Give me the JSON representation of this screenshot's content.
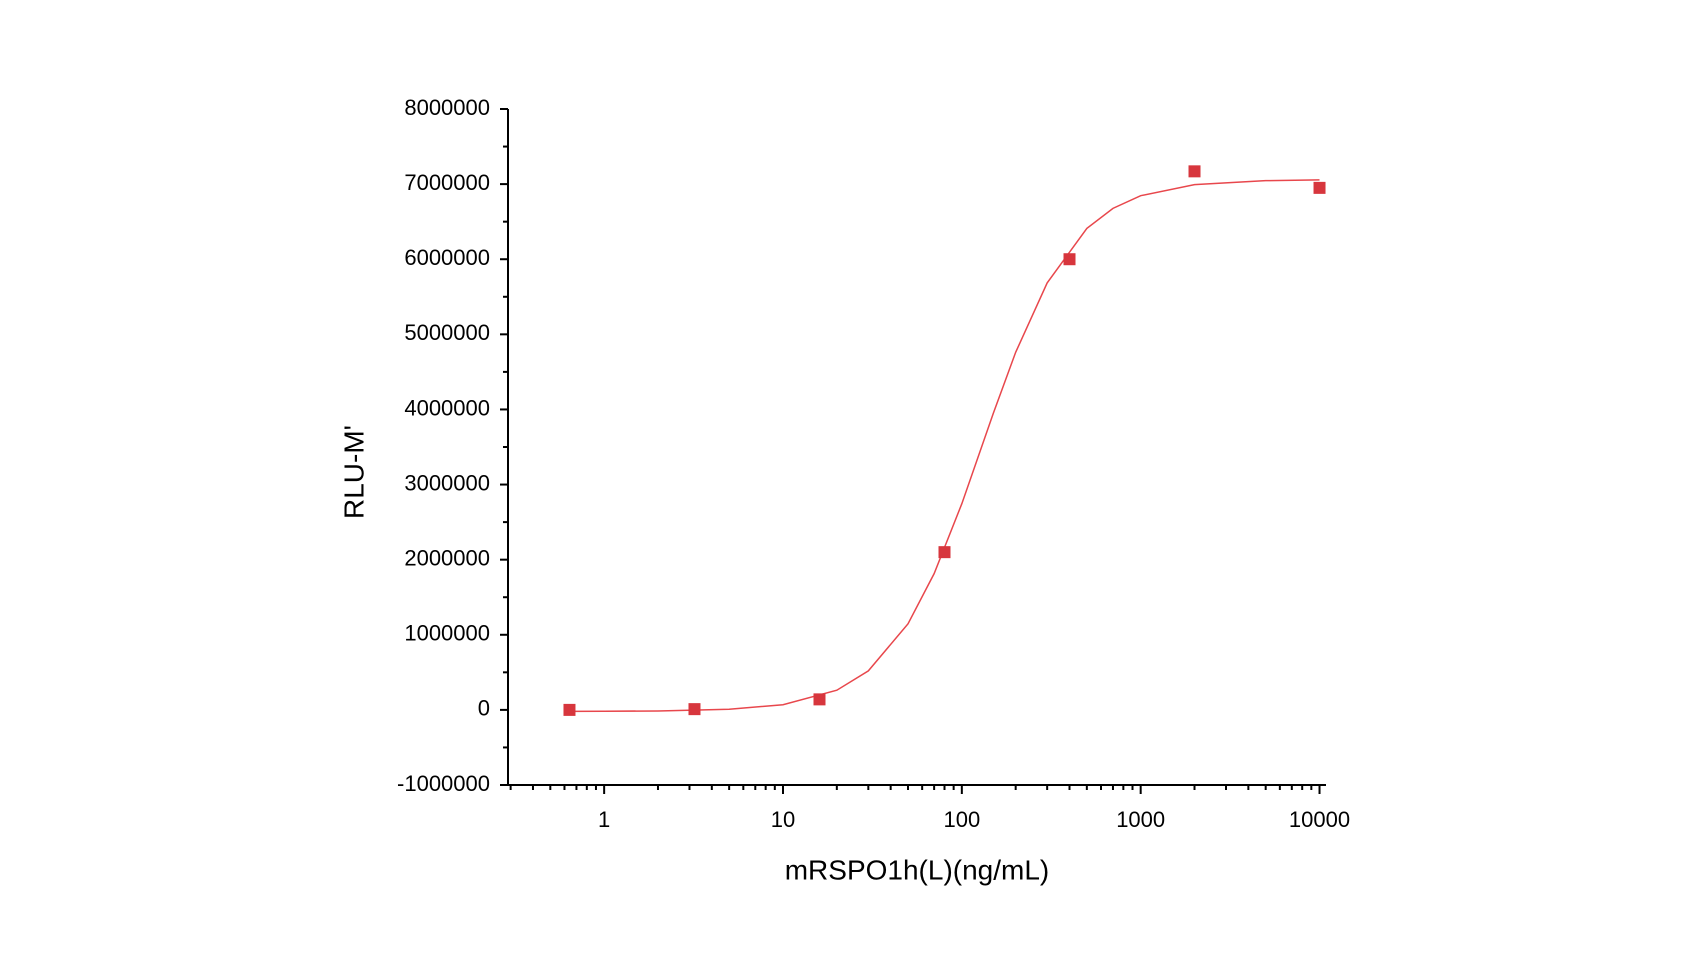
{
  "chart_data": {
    "type": "scatter",
    "x_label": "mRSPO1h(L)(ng/mL)",
    "y_label": "RLU-M'",
    "x_scale": "log",
    "xlim": [
      0.29,
      10870
    ],
    "ylim": [
      -1000000,
      8000000
    ],
    "xticks": [
      1,
      10,
      100,
      1000,
      10000
    ],
    "xminorticks": [
      0.3,
      0.4,
      0.5,
      0.6,
      0.7,
      0.8,
      0.9,
      2,
      3,
      4,
      5,
      6,
      7,
      8,
      9,
      20,
      30,
      40,
      50,
      60,
      70,
      80,
      90,
      200,
      300,
      400,
      500,
      600,
      700,
      800,
      900,
      2000,
      3000,
      4000,
      5000,
      6000,
      7000,
      8000,
      9000
    ],
    "yticks": [
      -1000000,
      0,
      1000000,
      2000000,
      3000000,
      4000000,
      5000000,
      6000000,
      7000000,
      8000000
    ],
    "yminorticks": [
      -500000,
      500000,
      1500000,
      2500000,
      3500000,
      4500000,
      5500000,
      6500000,
      7500000
    ],
    "series": [
      {
        "type": "scatter",
        "marker": "square",
        "color": "#d7363d",
        "x": [
          0.64,
          3.2,
          16,
          80,
          400,
          2000,
          10000
        ],
        "values": [
          0,
          10000,
          140000,
          2100000,
          6000000,
          7170000,
          6950000
        ]
      },
      {
        "type": "line",
        "color": "#e8474c",
        "x": [
          0.64,
          1,
          2,
          5,
          10,
          20,
          30,
          50,
          70,
          100,
          150,
          200,
          300,
          500,
          700,
          1000,
          2000,
          5000,
          10000
        ],
        "values": [
          -20000,
          -18000,
          -14000,
          8000,
          69000,
          262000,
          519000,
          1146000,
          1814000,
          2745000,
          3949000,
          4761000,
          5685000,
          6410000,
          6677000,
          6846000,
          6993000,
          7046000,
          7056000
        ]
      }
    ]
  }
}
